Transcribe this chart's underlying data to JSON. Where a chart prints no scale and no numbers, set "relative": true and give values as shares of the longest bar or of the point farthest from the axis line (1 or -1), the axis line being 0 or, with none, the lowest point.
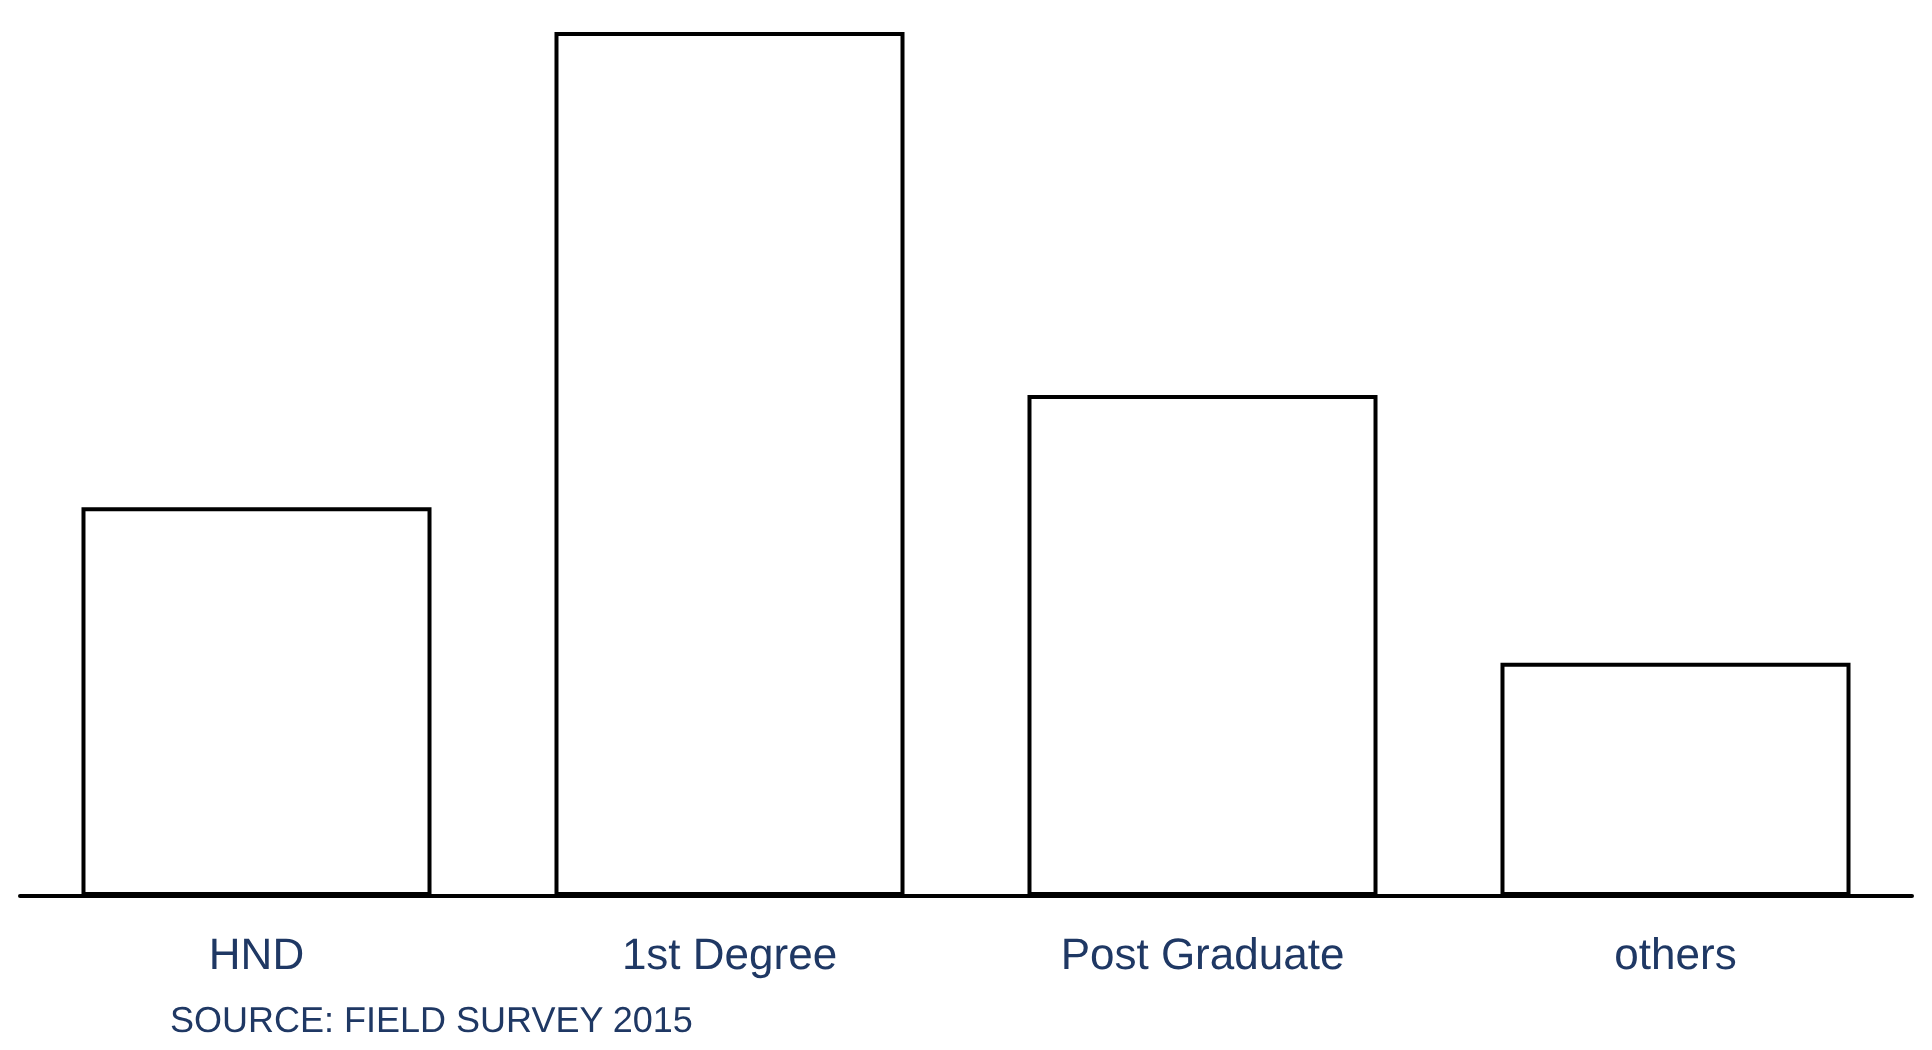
{
  "chart_data": {
    "type": "bar",
    "relative": true,
    "categories": [
      "HND",
      "1st Degree",
      "Post Graduate",
      "others"
    ],
    "values": [
      0.45,
      1,
      0.58,
      0.27
    ],
    "color": "#ffffff",
    "annotations": [
      "SOURCE: FIELD SURVEY 2015"
    ]
  }
}
